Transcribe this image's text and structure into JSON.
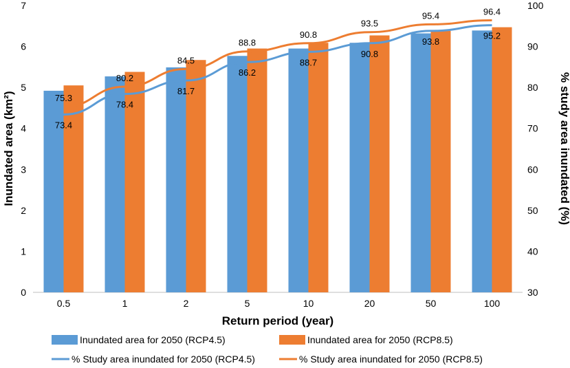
{
  "chart_data": {
    "type": "bar",
    "categories": [
      "0.5",
      "1",
      "2",
      "5",
      "10",
      "20",
      "50",
      "100"
    ],
    "series": [
      {
        "name": "Inundated area for 2050 (RCP4.5)",
        "kind": "bar",
        "axis": "left",
        "color": "#5b9bd5",
        "values": [
          4.92,
          5.27,
          5.49,
          5.77,
          5.95,
          6.09,
          6.32,
          6.39
        ]
      },
      {
        "name": "Inundated area for 2050 (RCP8.5)",
        "kind": "bar",
        "axis": "left",
        "color": "#ed7d31",
        "values": [
          5.05,
          5.38,
          5.67,
          5.95,
          6.09,
          6.27,
          6.38,
          6.47
        ]
      },
      {
        "name": "% Study area inundated for 2050 (RCP4.5)",
        "kind": "line",
        "axis": "right",
        "color": "#5b9bd5",
        "values": [
          73.4,
          78.4,
          81.7,
          86.2,
          88.7,
          90.8,
          93.8,
          95.2
        ],
        "labels": [
          "73.4",
          "78.4",
          "81.7",
          "86.2",
          "88.7",
          "90.8",
          "93.8",
          "95.2"
        ]
      },
      {
        "name": "% Study area inundated for 2050 (RCP8.5)",
        "kind": "line",
        "axis": "right",
        "color": "#ed7d31",
        "values": [
          75.3,
          80.2,
          84.5,
          88.8,
          90.8,
          93.5,
          95.4,
          96.4
        ],
        "labels": [
          "75.3",
          "80.2",
          "84.5",
          "88.8",
          "90.8",
          "93.5",
          "95.4",
          "96.4"
        ]
      }
    ],
    "xlabel": "Return period (year)",
    "ylabel": "Inundated area (km²)",
    "y2label": "% study area inundated (%)",
    "ylim": [
      0,
      7
    ],
    "yticks": [
      "0",
      "1",
      "2",
      "3",
      "4",
      "5",
      "6",
      "7"
    ],
    "y2lim": [
      30,
      100
    ],
    "y2ticks": [
      "30",
      "40",
      "50",
      "60",
      "70",
      "80",
      "90",
      "100"
    ],
    "legend_position": "bottom"
  }
}
